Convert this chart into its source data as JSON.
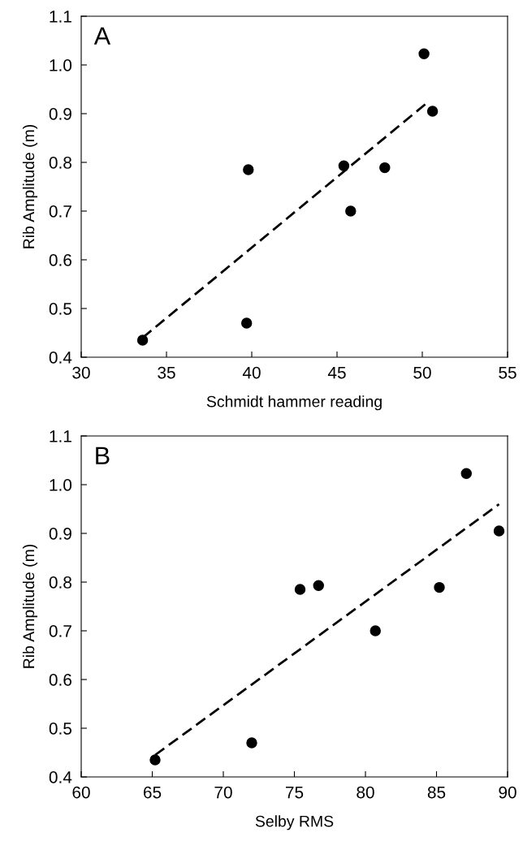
{
  "chart_data": [
    {
      "type": "scatter",
      "xlabel": "Schmidt hammer reading",
      "ylabel": "Rib Amplitude (m)",
      "annotations": [
        "A"
      ],
      "xlim": [
        30,
        55
      ],
      "xticks": [
        30,
        35,
        40,
        45,
        50,
        55
      ],
      "ylim": [
        0.4,
        1.1
      ],
      "yticks": [
        {
          "value": 0.4,
          "label": "0.4"
        },
        {
          "value": 0.5,
          "label": "0.5"
        },
        {
          "value": 0.6,
          "label": "0.6"
        },
        {
          "value": 0.7,
          "label": "0.7"
        },
        {
          "value": 0.8,
          "label": "0.8"
        },
        {
          "value": 0.9,
          "label": "0.9"
        },
        {
          "value": 1.0,
          "label": "1.0"
        },
        {
          "value": 1.1,
          "label": "1.1"
        }
      ],
      "grid": false,
      "marker": "circle",
      "series": [
        {
          "color": "#000000",
          "x": [
            33.6,
            39.7,
            39.8,
            45.4,
            45.8,
            47.8,
            50.1,
            50.6
          ],
          "values": [
            0.435,
            0.47,
            0.785,
            0.793,
            0.7,
            0.789,
            1.023,
            0.905
          ]
        },
        {
          "type": "line",
          "line_style": "dashed",
          "marker": "none",
          "color": "#000000",
          "x": [
            33.6,
            50.2
          ],
          "values": [
            0.44,
            0.92
          ]
        }
      ]
    },
    {
      "type": "scatter",
      "xlabel": "Selby RMS",
      "ylabel": "Rib Amplitude (m)",
      "annotations": [
        "B"
      ],
      "xlim": [
        60,
        90
      ],
      "xticks": [
        60,
        65,
        70,
        75,
        80,
        85,
        90
      ],
      "ylim": [
        0.4,
        1.1
      ],
      "yticks": [
        {
          "value": 0.4,
          "label": "0.4"
        },
        {
          "value": 0.5,
          "label": "0.5"
        },
        {
          "value": 0.6,
          "label": "0.6"
        },
        {
          "value": 0.7,
          "label": "0.7"
        },
        {
          "value": 0.8,
          "label": "0.8"
        },
        {
          "value": 0.9,
          "label": "0.9"
        },
        {
          "value": 1.0,
          "label": "1.0"
        },
        {
          "value": 1.1,
          "label": "1.1"
        }
      ],
      "grid": false,
      "marker": "circle",
      "series": [
        {
          "color": "#000000",
          "x": [
            65.2,
            72.0,
            75.4,
            76.7,
            80.7,
            85.2,
            87.1,
            89.4
          ],
          "values": [
            0.435,
            0.47,
            0.785,
            0.793,
            0.7,
            0.789,
            1.023,
            0.905
          ]
        },
        {
          "type": "line",
          "line_style": "dashed",
          "marker": "none",
          "color": "#000000",
          "x": [
            65.2,
            89.4
          ],
          "values": [
            0.445,
            0.96
          ]
        }
      ]
    }
  ]
}
